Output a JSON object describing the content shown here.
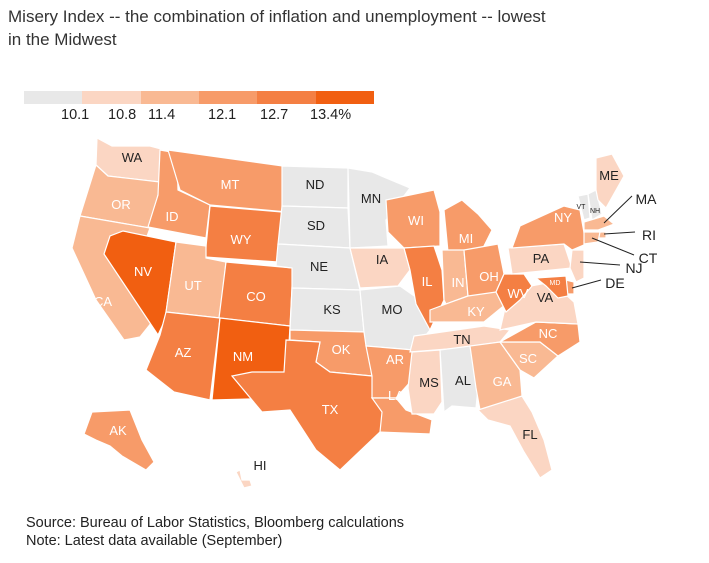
{
  "title_line1": "Misery Index -- the combination of inflation and unemployment -- lowest",
  "title_line2": "in the Midwest",
  "legend": {
    "colors": [
      "#e8e8e8",
      "#fbd6c3",
      "#f9b993",
      "#f79b69",
      "#f47f43",
      "#f15f11"
    ],
    "ticks": [
      "10.1",
      "10.8",
      "11.4",
      "12.1",
      "12.7",
      "13.4%"
    ]
  },
  "states": [
    {
      "abbr": "WA",
      "bin": 1
    },
    {
      "abbr": "OR",
      "bin": 2
    },
    {
      "abbr": "CA",
      "bin": 2
    },
    {
      "abbr": "NV",
      "bin": 5
    },
    {
      "abbr": "ID",
      "bin": 3
    },
    {
      "abbr": "MT",
      "bin": 3
    },
    {
      "abbr": "WY",
      "bin": 4
    },
    {
      "abbr": "UT",
      "bin": 2
    },
    {
      "abbr": "CO",
      "bin": 4
    },
    {
      "abbr": "AZ",
      "bin": 4
    },
    {
      "abbr": "NM",
      "bin": 5
    },
    {
      "abbr": "ND",
      "bin": 0
    },
    {
      "abbr": "SD",
      "bin": 0
    },
    {
      "abbr": "NE",
      "bin": 0
    },
    {
      "abbr": "KS",
      "bin": 0
    },
    {
      "abbr": "OK",
      "bin": 3
    },
    {
      "abbr": "TX",
      "bin": 4
    },
    {
      "abbr": "MN",
      "bin": 0
    },
    {
      "abbr": "IA",
      "bin": 1
    },
    {
      "abbr": "MO",
      "bin": 0
    },
    {
      "abbr": "AR",
      "bin": 3
    },
    {
      "abbr": "LA",
      "bin": 3
    },
    {
      "abbr": "WI",
      "bin": 3
    },
    {
      "abbr": "IL",
      "bin": 4
    },
    {
      "abbr": "MI",
      "bin": 3
    },
    {
      "abbr": "IN",
      "bin": 2
    },
    {
      "abbr": "OH",
      "bin": 3
    },
    {
      "abbr": "KY",
      "bin": 2
    },
    {
      "abbr": "TN",
      "bin": 1
    },
    {
      "abbr": "MS",
      "bin": 1
    },
    {
      "abbr": "AL",
      "bin": 0
    },
    {
      "abbr": "GA",
      "bin": 2
    },
    {
      "abbr": "FL",
      "bin": 1
    },
    {
      "abbr": "SC",
      "bin": 2
    },
    {
      "abbr": "NC",
      "bin": 3
    },
    {
      "abbr": "VA",
      "bin": 1
    },
    {
      "abbr": "WV",
      "bin": 4
    },
    {
      "abbr": "PA",
      "bin": 1
    },
    {
      "abbr": "NY",
      "bin": 3
    },
    {
      "abbr": "VT",
      "bin": 0
    },
    {
      "abbr": "NH",
      "bin": 0
    },
    {
      "abbr": "ME",
      "bin": 1
    },
    {
      "abbr": "MA",
      "bin": 2
    },
    {
      "abbr": "RI",
      "bin": 2
    },
    {
      "abbr": "CT",
      "bin": 2
    },
    {
      "abbr": "NJ",
      "bin": 1
    },
    {
      "abbr": "DE",
      "bin": 3
    },
    {
      "abbr": "MD",
      "bin": 4
    },
    {
      "abbr": "AK",
      "bin": 3
    },
    {
      "abbr": "HI",
      "bin": 1
    }
  ],
  "footer_source": "Source: Bureau of Labor Statistics, Bloomberg calculations",
  "footer_note": "Note: Latest data available (September)"
}
